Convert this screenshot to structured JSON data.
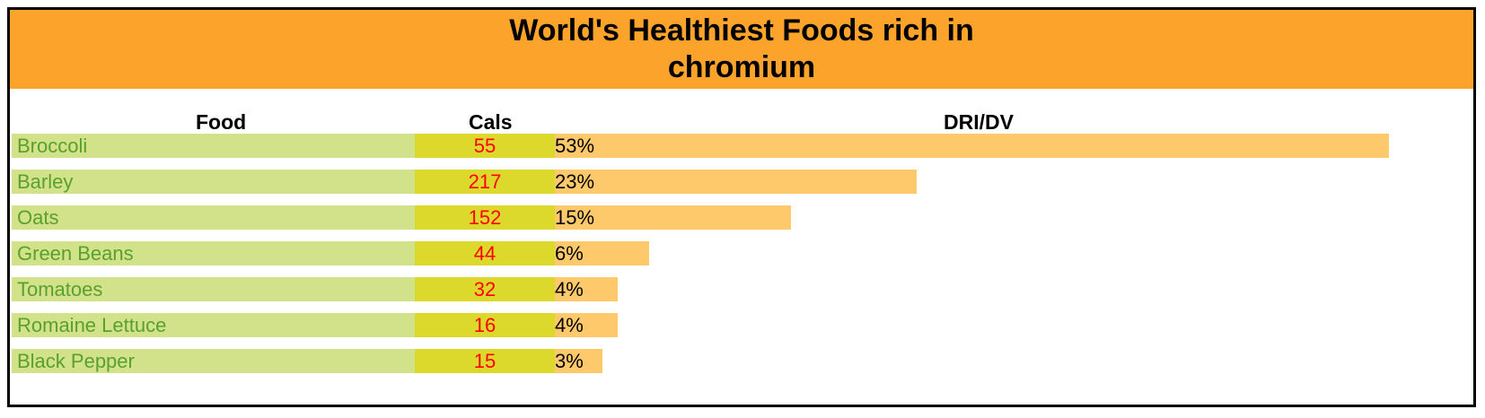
{
  "chart_data": {
    "type": "bar",
    "title": "World's Healthiest Foods rich in chromium",
    "columns": [
      "Food",
      "Cals",
      "DRI/DV"
    ],
    "rows": [
      {
        "food": "Broccoli",
        "cals": "55",
        "dri_label": "53%",
        "dri": 53
      },
      {
        "food": "Barley",
        "cals": "217",
        "dri_label": "23%",
        "dri": 23
      },
      {
        "food": "Oats",
        "cals": "152",
        "dri_label": "15%",
        "dri": 15
      },
      {
        "food": "Green Beans",
        "cals": "44",
        "dri_label": "6%",
        "dri": 6
      },
      {
        "food": "Tomatoes",
        "cals": "32",
        "dri_label": "4%",
        "dri": 4
      },
      {
        "food": "Romaine Lettuce",
        "cals": "16",
        "dri_label": "4%",
        "dri": 4
      },
      {
        "food": "Black Pepper",
        "cals": "15",
        "dri_label": "3%",
        "dri": 3
      }
    ]
  },
  "colors": {
    "title_background": "#fba32b",
    "food_cell": "#d2e28b",
    "food_text": "#5aa02c",
    "cals_cell": "#dcd92c",
    "cals_text": "#ff0000",
    "dri_bar": "#fdc96b"
  }
}
